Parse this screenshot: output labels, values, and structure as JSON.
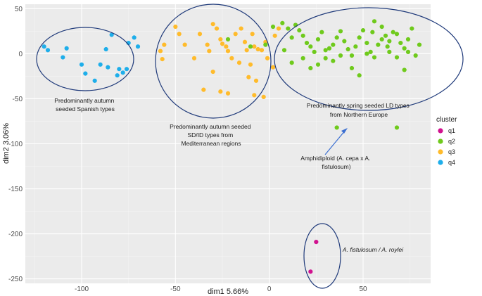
{
  "chart_data": {
    "type": "scatter",
    "xlabel": "dim1 5.66%",
    "ylabel": "dim2 3.06%",
    "xlim": [
      -130,
      86
    ],
    "ylim": [
      -255,
      55
    ],
    "xticks": [
      -100,
      -50,
      0,
      50
    ],
    "yticks": [
      50,
      0,
      -50,
      -100,
      -150,
      -200,
      -250
    ],
    "xtick_labels": [
      "-100",
      "-50",
      "0",
      "50"
    ],
    "ytick_labels": [
      "50",
      "0",
      "-50",
      "-100",
      "-150",
      "-200",
      "-250"
    ],
    "grid": true,
    "legend": {
      "title": "cluster",
      "placement": "right",
      "entries": [
        {
          "name": "q1",
          "color": "#d1128f"
        },
        {
          "name": "q2",
          "color": "#6fca1c"
        },
        {
          "name": "q3",
          "color": "#ffbb2b"
        },
        {
          "name": "q4",
          "color": "#1eaeea"
        }
      ]
    },
    "series": [
      {
        "name": "q1",
        "color": "#d1128f",
        "points": [
          [
            25,
            -209
          ],
          [
            22,
            -242
          ]
        ]
      },
      {
        "name": "q4",
        "color": "#1eaeea",
        "points": [
          [
            -120,
            8
          ],
          [
            -118,
            4
          ],
          [
            -110,
            -4
          ],
          [
            -108,
            6
          ],
          [
            -100,
            -12
          ],
          [
            -98,
            -22
          ],
          [
            -90,
            -12
          ],
          [
            -87,
            5
          ],
          [
            -86,
            -15
          ],
          [
            -84,
            21
          ],
          [
            -80,
            -17
          ],
          [
            -78,
            -21
          ],
          [
            -76,
            -17
          ],
          [
            -75,
            12
          ],
          [
            -72,
            18
          ],
          [
            -70,
            8
          ],
          [
            -93,
            -30
          ],
          [
            -81,
            -24
          ]
        ]
      },
      {
        "name": "q3",
        "color": "#ffbb2b",
        "points": [
          [
            -58,
            3
          ],
          [
            -57,
            -6
          ],
          [
            -56,
            10
          ],
          [
            -50,
            30
          ],
          [
            -48,
            22
          ],
          [
            -45,
            10
          ],
          [
            -40,
            -5
          ],
          [
            -37,
            22
          ],
          [
            -33,
            10
          ],
          [
            -32,
            3
          ],
          [
            -30,
            33
          ],
          [
            -28,
            28
          ],
          [
            -26,
            16
          ],
          [
            -25,
            11
          ],
          [
            -23,
            8
          ],
          [
            -22,
            3
          ],
          [
            -20,
            -5
          ],
          [
            -18,
            22
          ],
          [
            -16,
            -10
          ],
          [
            -15,
            28
          ],
          [
            -13,
            13
          ],
          [
            -12,
            4
          ],
          [
            -11,
            -26
          ],
          [
            -10,
            -12
          ],
          [
            -9,
            22
          ],
          [
            -8,
            8
          ],
          [
            -7,
            -30
          ],
          [
            -6,
            5
          ],
          [
            -4,
            4
          ],
          [
            -2,
            13
          ],
          [
            -1,
            -5
          ],
          [
            3,
            20
          ],
          [
            5,
            28
          ],
          [
            -26,
            -42
          ],
          [
            -22,
            -44
          ],
          [
            -8,
            -46
          ],
          [
            -3,
            -48
          ],
          [
            2,
            -15
          ],
          [
            -30,
            -20
          ],
          [
            -35,
            -40
          ]
        ]
      },
      {
        "name": "q2",
        "color": "#6fca1c",
        "points": [
          [
            -22,
            16
          ],
          [
            -10,
            8
          ],
          [
            -2,
            10
          ],
          [
            2,
            30
          ],
          [
            7,
            34
          ],
          [
            10,
            28
          ],
          [
            12,
            18
          ],
          [
            14,
            32
          ],
          [
            16,
            26
          ],
          [
            18,
            20
          ],
          [
            20,
            12
          ],
          [
            22,
            8
          ],
          [
            24,
            2
          ],
          [
            26,
            16
          ],
          [
            28,
            24
          ],
          [
            30,
            -5
          ],
          [
            32,
            6
          ],
          [
            34,
            10
          ],
          [
            36,
            18
          ],
          [
            38,
            25
          ],
          [
            40,
            14
          ],
          [
            42,
            5
          ],
          [
            44,
            -2
          ],
          [
            46,
            8
          ],
          [
            48,
            18
          ],
          [
            50,
            26
          ],
          [
            52,
            12
          ],
          [
            54,
            2
          ],
          [
            55,
            24
          ],
          [
            56,
            -4
          ],
          [
            58,
            10
          ],
          [
            60,
            16
          ],
          [
            62,
            20
          ],
          [
            63,
            8
          ],
          [
            64,
            2
          ],
          [
            66,
            24
          ],
          [
            68,
            -4
          ],
          [
            70,
            12
          ],
          [
            72,
            6
          ],
          [
            74,
            16
          ],
          [
            76,
            28
          ],
          [
            78,
            -2
          ],
          [
            80,
            10
          ],
          [
            8,
            4
          ],
          [
            12,
            -10
          ],
          [
            18,
            -5
          ],
          [
            22,
            -16
          ],
          [
            26,
            -12
          ],
          [
            30,
            4
          ],
          [
            34,
            -8
          ],
          [
            38,
            -2
          ],
          [
            44,
            -16
          ],
          [
            48,
            -24
          ],
          [
            52,
            0
          ],
          [
            56,
            36
          ],
          [
            60,
            30
          ],
          [
            64,
            14
          ],
          [
            68,
            22
          ],
          [
            72,
            -18
          ],
          [
            74,
            2
          ],
          [
            36,
            -82
          ],
          [
            68,
            -82
          ]
        ]
      }
    ],
    "annotations": [
      {
        "text_lines": [
          "Predominantly autumn",
          "seeded Spanish types"
        ]
      },
      {
        "text_lines": [
          "Predominantly autumn seeded",
          "SD/ID types from",
          "Mediterranean regions"
        ]
      },
      {
        "text_lines": [
          "Predominantly spring seeded LD types",
          "from Northern Europe"
        ]
      },
      {
        "text_lines": [
          "Amphidiploid (A. cepa x A.",
          "fistulosum)"
        ]
      },
      {
        "text_lines": [
          "A. fistulosum / A. roylei"
        ]
      }
    ]
  }
}
